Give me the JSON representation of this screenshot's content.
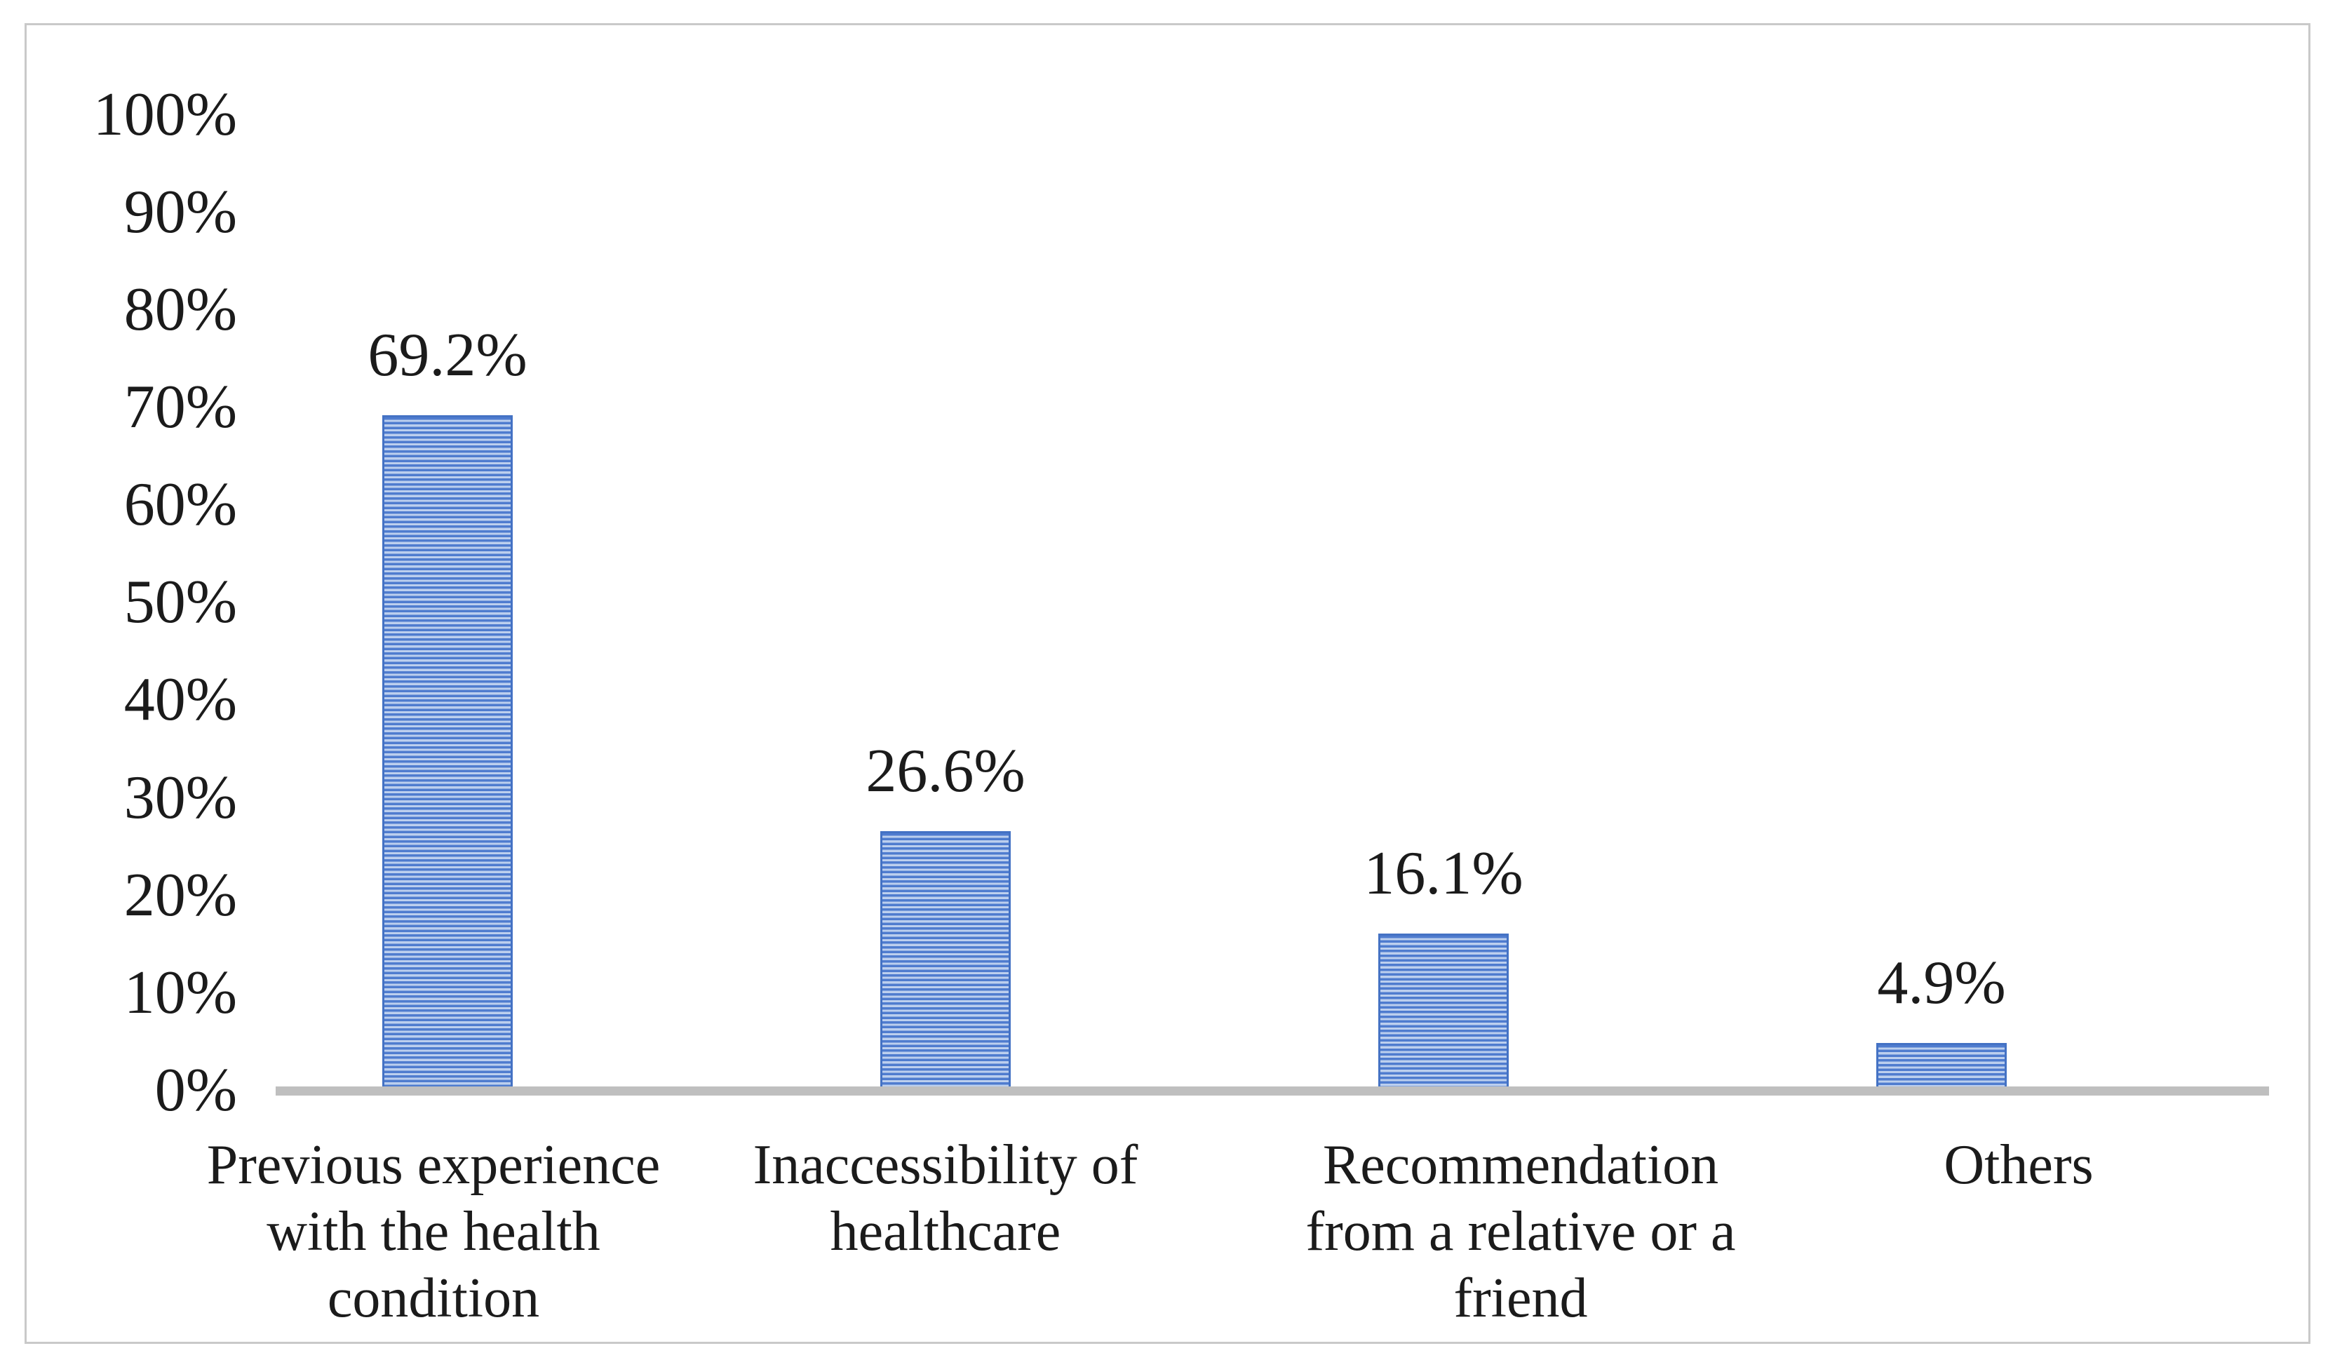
{
  "chart_data": {
    "type": "bar",
    "title": "",
    "xlabel": "",
    "ylabel": "",
    "categories": [
      "Previous experience with the health condition",
      "Inaccessibility of healthcare",
      "Recommendation from a relative or a friend",
      "Others"
    ],
    "category_label_lines": [
      {
        "line1": "Previous experience",
        "line2": "with the health",
        "line3": "condition"
      },
      {
        "line1": "Inaccessibility of",
        "line2": "healthcare",
        "line3": ""
      },
      {
        "line1": "Recommendation",
        "line2": "from a relative or a",
        "line3": "friend"
      },
      {
        "line1": "Others",
        "line2": "",
        "line3": ""
      }
    ],
    "values": [
      69.2,
      26.6,
      16.1,
      4.9
    ],
    "data_labels": [
      "69.2%",
      "26.6%",
      "16.1%",
      "4.9%"
    ],
    "ytick_labels": [
      "100%",
      "90%",
      "80%",
      "70%",
      "60%",
      "50%",
      "40%",
      "30%",
      "20%",
      "10%",
      "0%"
    ],
    "ylim": [
      0,
      100
    ],
    "ytick_step": 10,
    "grid": false,
    "legend": false,
    "bar_pattern": "light-horizontal-stripes",
    "colors": {
      "bar_stripe_dark": "#4472c4",
      "bar_stripe_light": "#bccfee",
      "bar_border": "#4472c4",
      "axis_line": "#bfbfbf",
      "frame_border": "#c9c9c9",
      "text": "#1b1b1b",
      "background": "#ffffff"
    }
  }
}
